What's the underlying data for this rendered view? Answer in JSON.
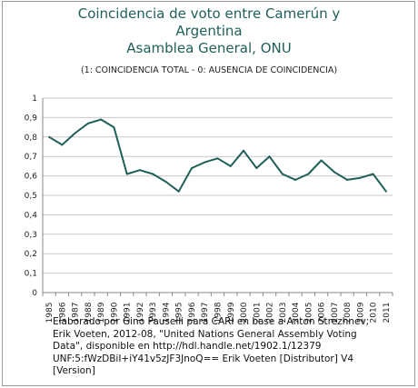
{
  "chart_data": {
    "type": "line",
    "title_lines": [
      "Coincidencia de voto entre Camerún y",
      "Argentina",
      "Asamblea General, ONU"
    ],
    "subtitle": "(1: COINCIDENCIA TOTAL  -  0: AUSENCIA DE COINCIDENCIA)",
    "xlabel": "",
    "ylabel": "",
    "ylim": [
      0,
      1
    ],
    "yticks": [
      "0",
      "0,1",
      "0,2",
      "0,3",
      "0,4",
      "0,5",
      "0,6",
      "0,7",
      "0,8",
      "0,9",
      "1"
    ],
    "categories": [
      "1985",
      "1986",
      "1987",
      "1988",
      "1989",
      "1990",
      "1991",
      "1992",
      "1993",
      "1994",
      "1995",
      "1996",
      "1997",
      "1998",
      "1999",
      "2000",
      "2001",
      "2002",
      "2003",
      "2004",
      "2005",
      "2006",
      "2007",
      "2008",
      "2009",
      "2010",
      "2011"
    ],
    "series": [
      {
        "values": [
          0.8,
          0.76,
          0.82,
          0.87,
          0.89,
          0.85,
          0.61,
          0.63,
          0.61,
          0.57,
          0.52,
          0.64,
          0.67,
          0.69,
          0.65,
          0.73,
          0.64,
          0.7,
          0.61,
          0.58,
          0.61,
          0.68,
          0.62,
          0.58,
          0.59,
          0.61,
          0.52
        ],
        "color": "#1f5f5a"
      }
    ],
    "grid": true,
    "legend": "none",
    "source_note": "Elaborado por Gino Pauselli para CARI en base a Anton Strezhnev;\nErik Voeten, 2012-08, \"United Nations General Assembly Voting\nData\", disponible  en http://hdl.handle.net/1902.1/12379\nUNF:5:fWzDBiI+iY41v5zJF3JnoQ==  Erik  Voeten [Distributor]  V4\n[Version]"
  }
}
